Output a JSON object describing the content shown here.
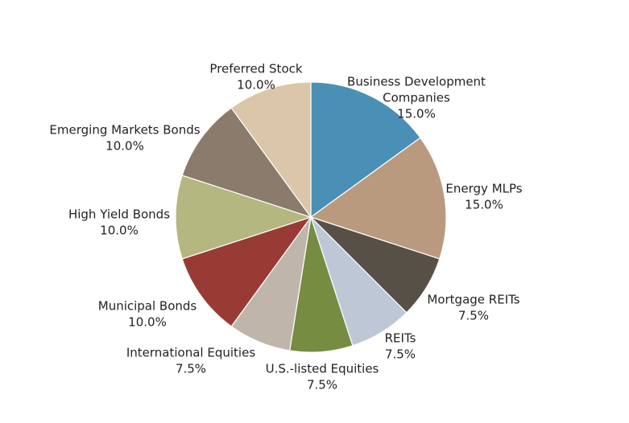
{
  "chart_data": {
    "type": "pie",
    "title": "",
    "start": "12 o'clock",
    "direction": "clockwise",
    "slices": [
      {
        "label": "Business Development Companies",
        "value": 15.0,
        "display_label": [
          "Business Development",
          "Companies",
          "15.0%"
        ],
        "color": "#4a8fb5"
      },
      {
        "label": "Energy MLPs",
        "value": 15.0,
        "display_label": [
          "Energy MLPs",
          "15.0%"
        ],
        "color": "#b99a7f"
      },
      {
        "label": "Mortgage REITs",
        "value": 7.5,
        "display_label": [
          "Mortgage REITs",
          "7.5%"
        ],
        "color": "#575046"
      },
      {
        "label": "REITs",
        "value": 7.5,
        "display_label": [
          "REITs",
          "7.5%"
        ],
        "color": "#bec7d6"
      },
      {
        "label": "U.S.-listed Equities",
        "value": 7.5,
        "display_label": [
          "U.S.-listed Equities",
          "7.5%"
        ],
        "color": "#768c41"
      },
      {
        "label": "International Equities",
        "value": 7.5,
        "display_label": [
          "International Equities",
          "7.5%"
        ],
        "color": "#bfb5ab"
      },
      {
        "label": "Municipal Bonds",
        "value": 10.0,
        "display_label": [
          "Municipal Bonds",
          "10.0%"
        ],
        "color": "#993b35"
      },
      {
        "label": "High Yield Bonds",
        "value": 10.0,
        "display_label": [
          "High Yield Bonds",
          "10.0%"
        ],
        "color": "#b4b77f"
      },
      {
        "label": "Emerging Markets Bonds",
        "value": 10.0,
        "display_label": [
          "Emerging Markets Bonds",
          "10.0%"
        ],
        "color": "#8a7b6c"
      },
      {
        "label": "Preferred Stock",
        "value": 10.0,
        "display_label": [
          "Preferred Stock",
          "10.0%"
        ],
        "color": "#dbc6a9"
      }
    ]
  }
}
